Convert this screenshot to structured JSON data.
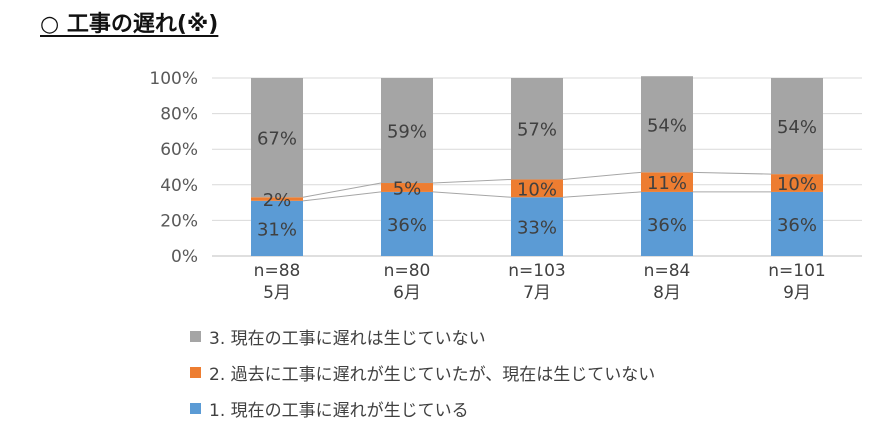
{
  "title": "○ 工事の遅れ(※)",
  "chart_data": {
    "type": "bar",
    "stacked": true,
    "categories": [
      "5月",
      "6月",
      "7月",
      "8月",
      "9月"
    ],
    "sample_sizes": [
      "n=88",
      "n=80",
      "n=103",
      "n=84",
      "n=101"
    ],
    "series": [
      {
        "name": "1. 現在の工事に遅れが生じている",
        "color": "#5B9BD5",
        "values": [
          31,
          36,
          33,
          36,
          36
        ]
      },
      {
        "name": "2. 過去に工事に遅れが生じていたが、現在は生じていない",
        "color": "#ED7D31",
        "values": [
          2,
          5,
          10,
          11,
          10
        ]
      },
      {
        "name": "3. 現在の工事に遅れは生じていない",
        "color": "#A5A5A5",
        "values": [
          67,
          59,
          57,
          54,
          54
        ]
      }
    ],
    "data_labels": [
      [
        "31%",
        "36%",
        "33%",
        "36%",
        "36%"
      ],
      [
        "2%",
        "5%",
        "10%",
        "11%",
        "10%"
      ],
      [
        "67%",
        "59%",
        "57%",
        "54%",
        "54%"
      ]
    ],
    "yticks": [
      "0%",
      "20%",
      "40%",
      "60%",
      "80%",
      "100%"
    ],
    "ylim": [
      0,
      100
    ],
    "grid": true,
    "legend_position": "bottom",
    "series_lines": true
  }
}
